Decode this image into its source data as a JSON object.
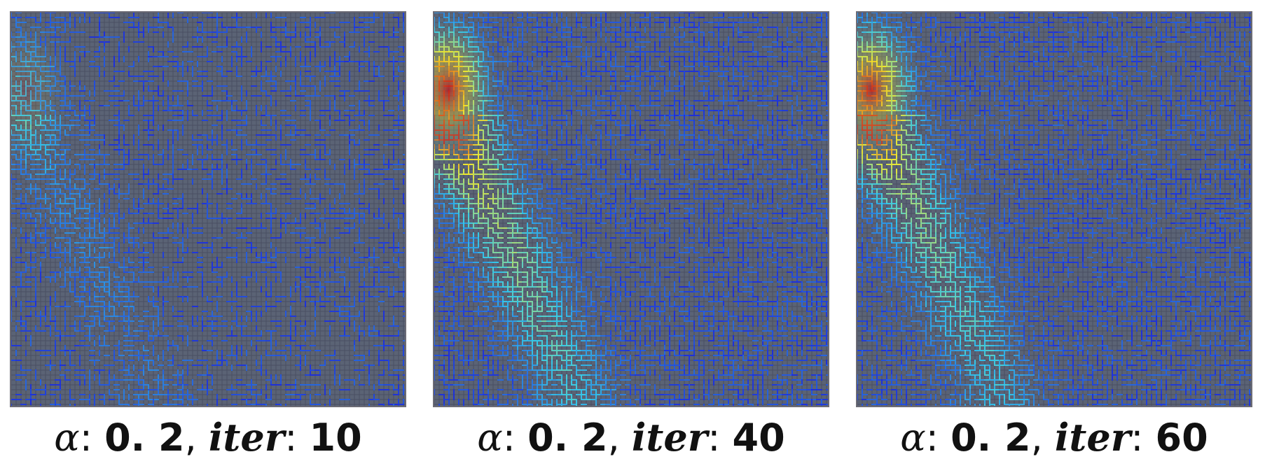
{
  "panels": [
    {
      "alpha_symbol": "α",
      "alpha_sep": ": ",
      "alpha_value": "0. 2",
      "comma": ", ",
      "iter_label": "iter",
      "iter_sep": ": ",
      "iter_value": "10",
      "intensity": 0.25
    },
    {
      "alpha_symbol": "α",
      "alpha_sep": ": ",
      "alpha_value": "0. 2",
      "comma": ", ",
      "iter_label": "iter",
      "iter_sep": ": ",
      "iter_value": "40",
      "intensity": 1.0
    },
    {
      "alpha_symbol": "α",
      "alpha_sep": ": ",
      "alpha_value": "0. 2",
      "comma": ", ",
      "iter_label": "iter",
      "iter_sep": ": ",
      "iter_value": "60",
      "intensity": 0.9
    }
  ],
  "colors": {
    "background": "#5b6375",
    "grid_dark": "#3a3f52",
    "low": "#1e2fd8",
    "mid": "#35c8e8",
    "high": "#f2e62a",
    "hot": "#c8141a"
  }
}
